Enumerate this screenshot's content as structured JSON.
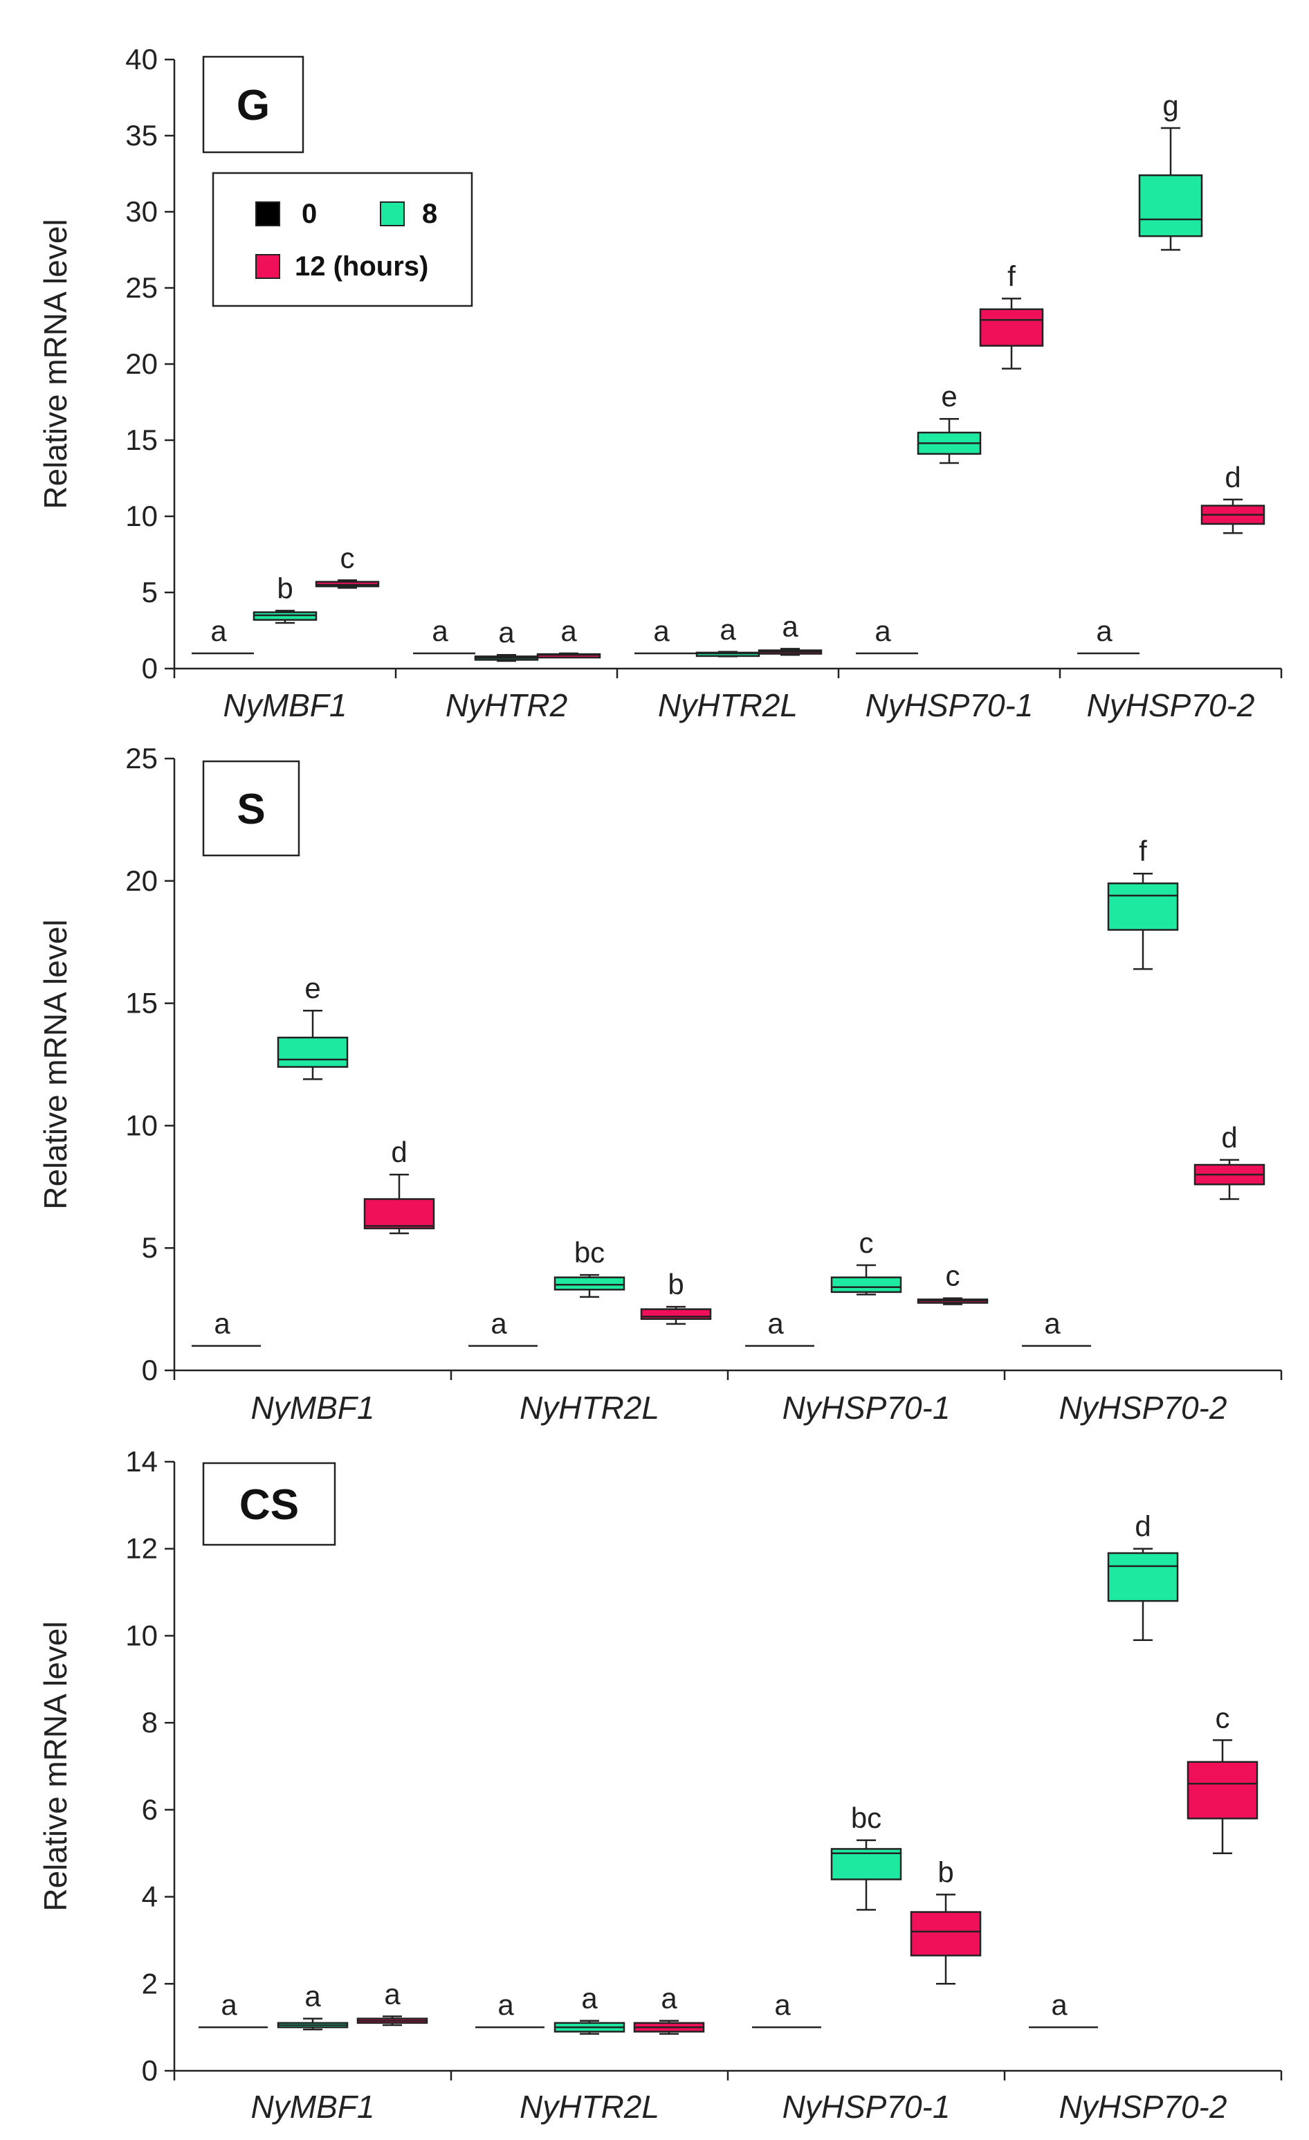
{
  "colors": {
    "h0": "#000000",
    "h8": "#1de9a0",
    "h12": "#f0105a",
    "axis": "#222222"
  },
  "legend": {
    "h0": "0",
    "h8": "8",
    "h12": "12 (hours)"
  },
  "chart_data": [
    {
      "type": "box",
      "panel": "G",
      "ylabel": "Relative mRNA level",
      "ylim": [
        0,
        40
      ],
      "yticks": [
        0,
        5,
        10,
        15,
        20,
        25,
        30,
        35,
        40
      ],
      "categories": [
        "NyMBF1",
        "NyHTR2",
        "NyHTR2L",
        "NyHSP70-1",
        "NyHSP70-2"
      ],
      "series": [
        {
          "name": "0",
          "color_key": "h0",
          "boxes": [
            {
              "min": 1,
              "q1": 1,
              "median": 1,
              "q3": 1,
              "max": 1,
              "letter": "a"
            },
            {
              "min": 1,
              "q1": 1,
              "median": 1,
              "q3": 1,
              "max": 1,
              "letter": "a"
            },
            {
              "min": 1,
              "q1": 1,
              "median": 1,
              "q3": 1,
              "max": 1,
              "letter": "a"
            },
            {
              "min": 1,
              "q1": 1,
              "median": 1,
              "q3": 1,
              "max": 1,
              "letter": "a"
            },
            {
              "min": 1,
              "q1": 1,
              "median": 1,
              "q3": 1,
              "max": 1,
              "letter": "a"
            }
          ]
        },
        {
          "name": "8",
          "color_key": "h8",
          "boxes": [
            {
              "min": 3.0,
              "q1": 3.2,
              "median": 3.5,
              "q3": 3.7,
              "max": 3.8,
              "letter": "b"
            },
            {
              "min": 0.5,
              "q1": 0.6,
              "median": 0.7,
              "q3": 0.8,
              "max": 0.9,
              "letter": "a"
            },
            {
              "min": 0.8,
              "q1": 0.9,
              "median": 1.0,
              "q3": 1.05,
              "max": 1.1,
              "letter": "a"
            },
            {
              "min": 13.5,
              "q1": 14.1,
              "median": 14.8,
              "q3": 15.5,
              "max": 16.4,
              "letter": "e"
            },
            {
              "min": 27.5,
              "q1": 28.4,
              "median": 29.5,
              "q3": 32.4,
              "max": 35.5,
              "letter": "g"
            }
          ]
        },
        {
          "name": "12 (hours)",
          "color_key": "h12",
          "boxes": [
            {
              "min": 5.3,
              "q1": 5.4,
              "median": 5.5,
              "q3": 5.7,
              "max": 5.8,
              "letter": "c"
            },
            {
              "min": 0.8,
              "q1": 0.85,
              "median": 0.9,
              "q3": 0.95,
              "max": 1.0,
              "letter": "a"
            },
            {
              "min": 0.9,
              "q1": 1.0,
              "median": 1.1,
              "q3": 1.2,
              "max": 1.3,
              "letter": "a"
            },
            {
              "min": 19.7,
              "q1": 21.2,
              "median": 22.9,
              "q3": 23.6,
              "max": 24.3,
              "letter": "f"
            },
            {
              "min": 8.9,
              "q1": 9.5,
              "median": 10.1,
              "q3": 10.7,
              "max": 11.1,
              "letter": "d"
            }
          ]
        }
      ]
    },
    {
      "type": "box",
      "panel": "S",
      "ylabel": "Relative mRNA level",
      "ylim": [
        0,
        25
      ],
      "yticks": [
        0,
        5,
        10,
        15,
        20,
        25
      ],
      "categories": [
        "NyMBF1",
        "NyHTR2L",
        "NyHSP70-1",
        "NyHSP70-2"
      ],
      "series": [
        {
          "name": "0",
          "color_key": "h0",
          "boxes": [
            {
              "min": 1,
              "q1": 1,
              "median": 1,
              "q3": 1,
              "max": 1,
              "letter": "a"
            },
            {
              "min": 1,
              "q1": 1,
              "median": 1,
              "q3": 1,
              "max": 1,
              "letter": "a"
            },
            {
              "min": 1,
              "q1": 1,
              "median": 1,
              "q3": 1,
              "max": 1,
              "letter": "a"
            },
            {
              "min": 1,
              "q1": 1,
              "median": 1,
              "q3": 1,
              "max": 1,
              "letter": "a"
            }
          ]
        },
        {
          "name": "8",
          "color_key": "h8",
          "boxes": [
            {
              "min": 11.9,
              "q1": 12.4,
              "median": 12.7,
              "q3": 13.6,
              "max": 14.7,
              "letter": "e"
            },
            {
              "min": 3.0,
              "q1": 3.3,
              "median": 3.5,
              "q3": 3.8,
              "max": 3.9,
              "letter": "bc"
            },
            {
              "min": 3.1,
              "q1": 3.2,
              "median": 3.4,
              "q3": 3.8,
              "max": 4.3,
              "letter": "c"
            },
            {
              "min": 16.4,
              "q1": 18.0,
              "median": 19.4,
              "q3": 19.9,
              "max": 20.3,
              "letter": "f"
            }
          ]
        },
        {
          "name": "12 (hours)",
          "color_key": "h12",
          "boxes": [
            {
              "min": 5.6,
              "q1": 5.8,
              "median": 5.9,
              "q3": 7.0,
              "max": 8.0,
              "letter": "d"
            },
            {
              "min": 1.9,
              "q1": 2.1,
              "median": 2.2,
              "q3": 2.5,
              "max": 2.6,
              "letter": "b"
            },
            {
              "min": 2.7,
              "q1": 2.8,
              "median": 2.85,
              "q3": 2.9,
              "max": 2.95,
              "letter": "c"
            },
            {
              "min": 7.0,
              "q1": 7.6,
              "median": 8.0,
              "q3": 8.4,
              "max": 8.6,
              "letter": "d"
            }
          ]
        }
      ]
    },
    {
      "type": "box",
      "panel": "CS",
      "ylabel": "Relative mRNA level",
      "ylim": [
        0,
        14
      ],
      "yticks": [
        0,
        2,
        4,
        6,
        8,
        10,
        12,
        14
      ],
      "categories": [
        "NyMBF1",
        "NyHTR2L",
        "NyHSP70-1",
        "NyHSP70-2"
      ],
      "series": [
        {
          "name": "0",
          "color_key": "h0",
          "boxes": [
            {
              "min": 1,
              "q1": 1,
              "median": 1,
              "q3": 1,
              "max": 1,
              "letter": "a"
            },
            {
              "min": 1,
              "q1": 1,
              "median": 1,
              "q3": 1,
              "max": 1,
              "letter": "a"
            },
            {
              "min": 1,
              "q1": 1,
              "median": 1,
              "q3": 1,
              "max": 1,
              "letter": "a"
            },
            {
              "min": 1,
              "q1": 1,
              "median": 1,
              "q3": 1,
              "max": 1,
              "letter": "a"
            }
          ]
        },
        {
          "name": "8",
          "color_key": "h8",
          "boxes": [
            {
              "min": 0.95,
              "q1": 1.0,
              "median": 1.05,
              "q3": 1.1,
              "max": 1.2,
              "letter": "a"
            },
            {
              "min": 0.85,
              "q1": 0.9,
              "median": 1.0,
              "q3": 1.1,
              "max": 1.15,
              "letter": "a"
            },
            {
              "min": 3.7,
              "q1": 4.4,
              "median": 5.0,
              "q3": 5.1,
              "max": 5.3,
              "letter": "bc"
            },
            {
              "min": 9.9,
              "q1": 10.8,
              "median": 11.6,
              "q3": 11.9,
              "max": 12.0,
              "letter": "d"
            }
          ]
        },
        {
          "name": "12 (hours)",
          "color_key": "h12",
          "boxes": [
            {
              "min": 1.05,
              "q1": 1.1,
              "median": 1.15,
              "q3": 1.2,
              "max": 1.25,
              "letter": "a"
            },
            {
              "min": 0.85,
              "q1": 0.9,
              "median": 1.0,
              "q3": 1.1,
              "max": 1.15,
              "letter": "a"
            },
            {
              "min": 2.0,
              "q1": 2.65,
              "median": 3.2,
              "q3": 3.65,
              "max": 4.05,
              "letter": "b"
            },
            {
              "min": 5.0,
              "q1": 5.8,
              "median": 6.6,
              "q3": 7.1,
              "max": 7.6,
              "letter": "c"
            }
          ]
        }
      ]
    }
  ]
}
